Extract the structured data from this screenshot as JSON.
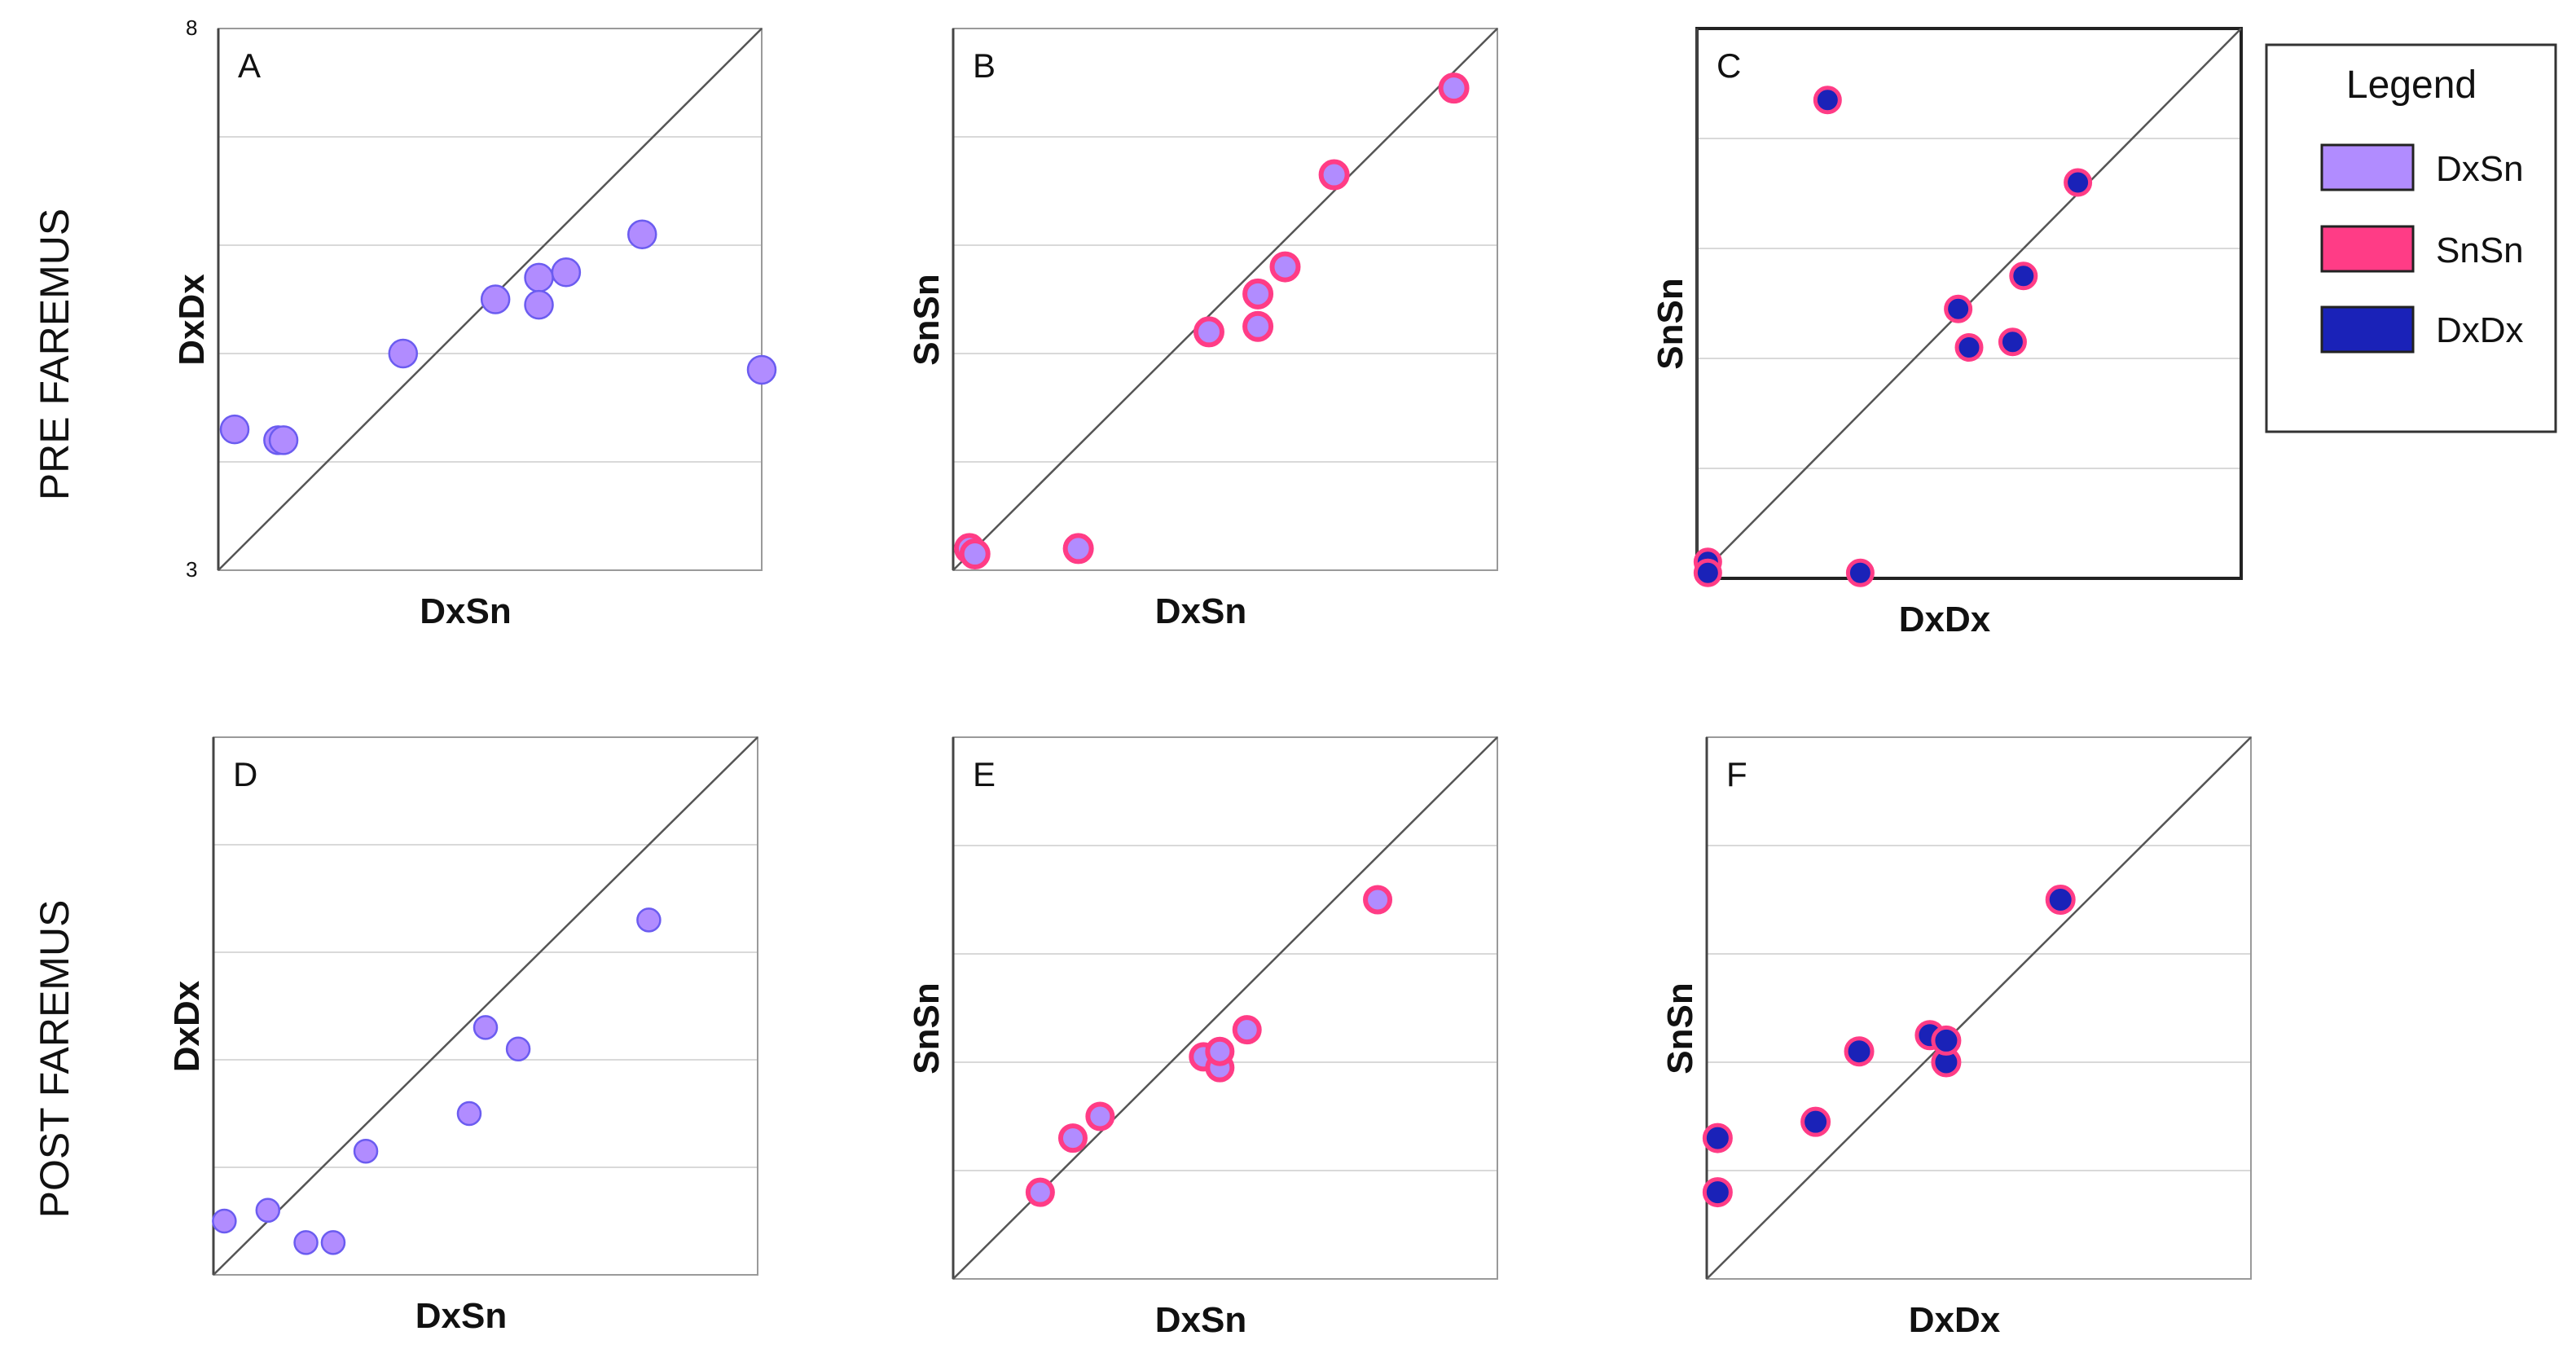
{
  "figure": {
    "row_labels": [
      "PRE FAREMUS",
      "POST FAREMUS"
    ]
  },
  "colors": {
    "DxSn": "#b18cff",
    "DxSn_stroke": "#6b5cf0",
    "SnSn": "#ff3c86",
    "DxDx": "#1a22b8",
    "grid": "#d9d9d9",
    "frame": "#333333",
    "diagonal": "#555555"
  },
  "legend": {
    "title": "Legend",
    "items": [
      {
        "label": "DxSn",
        "key": "DxSn"
      },
      {
        "label": "SnSn",
        "key": "SnSn"
      },
      {
        "label": "DxDx",
        "key": "DxDx"
      }
    ]
  },
  "chart_data": [
    {
      "panel": "A",
      "type": "scatter",
      "style": "DxSn",
      "xlabel": "DxSn",
      "ylabel": "DxDx",
      "xlim": [
        3,
        8
      ],
      "ylim": [
        3,
        8
      ],
      "yticks_labeled": [
        "8",
        "3"
      ],
      "points": [
        [
          3.15,
          4.3
        ],
        [
          3.55,
          4.2
        ],
        [
          3.6,
          4.2
        ],
        [
          4.7,
          5.0
        ],
        [
          5.55,
          5.5
        ],
        [
          5.95,
          5.7
        ],
        [
          5.95,
          5.45
        ],
        [
          6.2,
          5.75
        ],
        [
          6.9,
          6.1
        ],
        [
          8.0,
          4.85
        ]
      ]
    },
    {
      "panel": "B",
      "type": "scatter",
      "style": "SnSn",
      "xlabel": "DxSn",
      "ylabel": "SnSn",
      "xlim": [
        3,
        8
      ],
      "ylim": [
        3,
        8
      ],
      "points": [
        [
          3.15,
          3.2
        ],
        [
          3.2,
          3.15
        ],
        [
          4.15,
          3.2
        ],
        [
          5.35,
          5.2
        ],
        [
          5.8,
          5.25
        ],
        [
          5.8,
          5.55
        ],
        [
          6.05,
          5.8
        ],
        [
          6.5,
          6.65
        ],
        [
          7.6,
          7.45
        ]
      ]
    },
    {
      "panel": "C",
      "type": "scatter",
      "style": "DxDx",
      "xlabel": "DxDx",
      "ylabel": "SnSn",
      "xlim": [
        3,
        8
      ],
      "ylim": [
        3,
        8
      ],
      "points": [
        [
          3.1,
          3.15
        ],
        [
          3.1,
          3.05
        ],
        [
          4.2,
          7.35
        ],
        [
          4.5,
          3.05
        ],
        [
          5.4,
          5.45
        ],
        [
          5.5,
          5.1
        ],
        [
          5.9,
          5.15
        ],
        [
          6.0,
          5.75
        ],
        [
          6.5,
          6.6
        ]
      ]
    },
    {
      "panel": "D",
      "type": "scatter",
      "style": "DxSn",
      "xlabel": "DxSn",
      "ylabel": "DxDx",
      "xlim": [
        3,
        8
      ],
      "ylim": [
        3,
        8
      ],
      "points": [
        [
          3.1,
          3.5
        ],
        [
          3.5,
          3.6
        ],
        [
          3.85,
          3.3
        ],
        [
          4.1,
          3.3
        ],
        [
          4.4,
          4.15
        ],
        [
          5.35,
          4.5
        ],
        [
          5.5,
          5.3
        ],
        [
          5.8,
          5.1
        ],
        [
          7.0,
          6.3
        ]
      ]
    },
    {
      "panel": "E",
      "type": "scatter",
      "style": "SnSn",
      "xlabel": "DxSn",
      "ylabel": "SnSn",
      "xlim": [
        3,
        8
      ],
      "ylim": [
        3,
        8
      ],
      "points": [
        [
          3.8,
          3.8
        ],
        [
          4.1,
          4.3
        ],
        [
          4.35,
          4.5
        ],
        [
          5.3,
          5.05
        ],
        [
          5.45,
          4.95
        ],
        [
          5.45,
          5.1
        ],
        [
          5.7,
          5.3
        ],
        [
          6.9,
          6.5
        ]
      ]
    },
    {
      "panel": "F",
      "type": "scatter",
      "style": "DxDx",
      "xlabel": "DxDx",
      "ylabel": "SnSn",
      "xlim": [
        3,
        8
      ],
      "ylim": [
        3,
        8
      ],
      "points": [
        [
          3.1,
          3.8
        ],
        [
          3.1,
          4.3
        ],
        [
          4.0,
          4.45
        ],
        [
          4.4,
          5.1
        ],
        [
          5.05,
          5.25
        ],
        [
          5.2,
          5.0
        ],
        [
          5.2,
          5.2
        ],
        [
          6.25,
          6.5
        ]
      ]
    }
  ]
}
